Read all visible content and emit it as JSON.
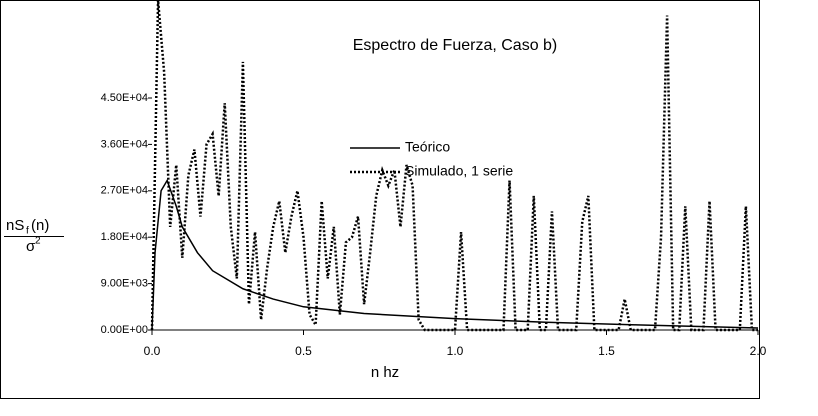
{
  "chart_data": {
    "type": "line",
    "title": "Espectro de Fuerza, Caso b)",
    "x_label": "n hz",
    "y_label": {
      "numerator": [
        "nS",
        "f",
        "(n)"
      ],
      "denominator": [
        "σ",
        "2"
      ]
    },
    "xlim": [
      0,
      2
    ],
    "ylim": [
      0,
      54000
    ],
    "xticks": [
      {
        "value": 0,
        "label": "0.0"
      },
      0.5,
      {
        "value": 1,
        "label": "1.0"
      },
      1.5,
      {
        "value": 2,
        "label": "2.0"
      }
    ],
    "yticks": [
      {
        "value": 0,
        "label": "0.00E+00"
      },
      {
        "value": 9000,
        "label": "9.00E+03"
      },
      {
        "value": 18000,
        "label": "1.80E+04"
      },
      {
        "value": 27000,
        "label": "2.70E+04"
      },
      {
        "value": 36000,
        "label": "3.60E+04"
      },
      {
        "value": 45000,
        "label": "4.50E+04"
      }
    ],
    "grid": false,
    "series": [
      {
        "name": "Teórico",
        "color": "#000000",
        "style": "solid",
        "x": [
          0,
          0.01,
          0.03,
          0.05,
          0.08,
          0.1,
          0.15,
          0.2,
          0.3,
          0.4,
          0.5,
          0.7,
          1.0,
          1.3,
          1.6,
          2.0
        ],
        "values": [
          0,
          15000,
          27000,
          29000,
          24000,
          20000,
          15000,
          11500,
          8000,
          6000,
          4500,
          3200,
          2200,
          1500,
          1000,
          400
        ]
      },
      {
        "name": "Simulado, 1 serie",
        "color": "#000000",
        "style": "dotted",
        "x": [
          0,
          0.02,
          0.04,
          0.06,
          0.08,
          0.1,
          0.12,
          0.14,
          0.16,
          0.18,
          0.2,
          0.22,
          0.24,
          0.26,
          0.28,
          0.3,
          0.32,
          0.34,
          0.36,
          0.38,
          0.4,
          0.42,
          0.44,
          0.46,
          0.48,
          0.5,
          0.52,
          0.54,
          0.56,
          0.58,
          0.6,
          0.62,
          0.64,
          0.66,
          0.68,
          0.7,
          0.72,
          0.74,
          0.76,
          0.78,
          0.8,
          0.82,
          0.84,
          0.86,
          0.88,
          0.9,
          0.92,
          0.94,
          0.96,
          0.98,
          1.0,
          1.02,
          1.04,
          1.06,
          1.08,
          1.1,
          1.12,
          1.14,
          1.16,
          1.18,
          1.2,
          1.22,
          1.24,
          1.26,
          1.28,
          1.3,
          1.32,
          1.34,
          1.36,
          1.38,
          1.4,
          1.42,
          1.44,
          1.46,
          1.48,
          1.5,
          1.52,
          1.54,
          1.56,
          1.58,
          1.6,
          1.62,
          1.64,
          1.66,
          1.68,
          1.7,
          1.72,
          1.74,
          1.76,
          1.78,
          1.8,
          1.82,
          1.84,
          1.86,
          1.88,
          1.9,
          1.92,
          1.94,
          1.96,
          1.98,
          2.0
        ],
        "values": [
          0,
          64000,
          50000,
          20000,
          32000,
          14000,
          30000,
          35000,
          22000,
          36000,
          38000,
          26000,
          44000,
          20000,
          10000,
          52000,
          5000,
          19000,
          2000,
          12000,
          20000,
          25000,
          15000,
          22000,
          27000,
          18000,
          3000,
          1000,
          25000,
          10000,
          20000,
          3000,
          17000,
          18000,
          22000,
          5000,
          15000,
          26000,
          31000,
          28000,
          31000,
          20000,
          32000,
          28000,
          2000,
          0,
          0,
          0,
          0,
          0,
          0,
          19000,
          0,
          0,
          0,
          0,
          0,
          0,
          0,
          29000,
          0,
          0,
          0,
          26000,
          0,
          0,
          23000,
          0,
          0,
          0,
          0,
          21000,
          26000,
          0,
          0,
          0,
          0,
          0,
          6000,
          0,
          0,
          0,
          0,
          0,
          18000,
          61000,
          0,
          0,
          24000,
          0,
          0,
          0,
          25000,
          0,
          0,
          0,
          0,
          0,
          24000,
          0,
          0
        ]
      }
    ]
  }
}
